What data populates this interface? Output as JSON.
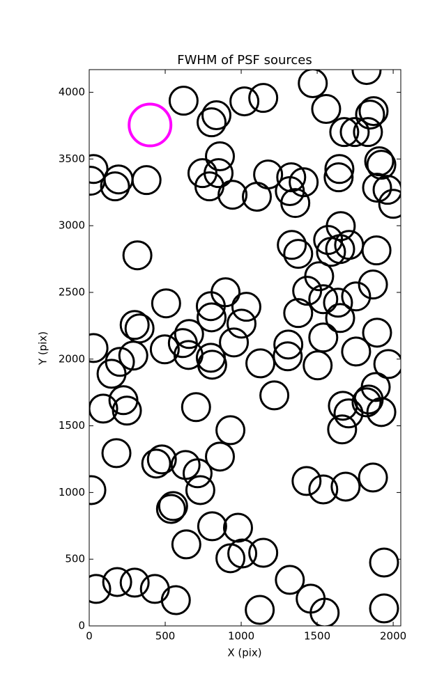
{
  "chart_data": {
    "type": "scatter",
    "title": "FWHM of PSF sources",
    "x_label": "X (pix)",
    "y_label": "Y (pix)",
    "xlim": [
      0,
      2050
    ],
    "ylim": [
      0,
      4170
    ],
    "xticks": [
      0,
      500,
      1000,
      1500,
      2000
    ],
    "yticks": [
      0,
      500,
      1000,
      1500,
      2000,
      2500,
      3000,
      3500,
      4000
    ],
    "series": [
      {
        "color": "#000000",
        "x": [
          28,
          9,
          170,
          193,
          377,
          621,
          805,
          837,
          1021,
          1145,
          860,
          745,
          851,
          791,
          943,
          1103,
          1177,
          1329,
          1320,
          1356,
          1411,
          1471,
          1559,
          1825,
          1871,
          1848,
          1678,
          1747,
          1834,
          1646,
          1641,
          1908,
          1922,
          1894,
          1963,
          2000,
          317,
          1333,
          1375,
          1655,
          1572,
          1591,
          1651,
          1710,
          1890,
          1513,
          1434,
          1540,
          1637,
          1756,
          1867,
          1375,
          1651,
          1540,
          1894,
          1503,
          1756,
          1968,
          506,
          800,
          805,
          897,
          1034,
          1002,
          952,
          299,
          331,
          657,
          616,
          653,
          497,
          290,
          800,
          809,
          1126,
          1310,
          1306,
          28,
          202,
          147,
          92,
          225,
          248,
          703,
          1218,
          929,
          1669,
          1706,
          1825,
          1839,
          1885,
          1922,
          1664,
          179,
          441,
          478,
          634,
          713,
          860,
          731,
          14,
          538,
          552,
          639,
          809,
          979,
          929,
          1007,
          1145,
          1430,
          1540,
          1687,
          1867,
          1320,
          1457,
          1549,
          1122,
          1940,
          1940,
          46,
          184,
          299,
          432,
          570
        ],
        "values": [
          3425,
          3337,
          3295,
          3347,
          3342,
          3937,
          3775,
          3828,
          3932,
          3958,
          3520,
          3394,
          3394,
          3295,
          3232,
          3217,
          3384,
          3363,
          3259,
          3170,
          3326,
          4068,
          3875,
          4167,
          3859,
          3833,
          3702,
          3702,
          3702,
          3425,
          3363,
          3483,
          3457,
          3285,
          3269,
          3164,
          2778,
          2856,
          2789,
          2997,
          2893,
          2804,
          2825,
          2856,
          2815,
          2621,
          2512,
          2449,
          2423,
          2470,
          2559,
          2345,
          2308,
          2162,
          2198,
          1953,
          2057,
          1963,
          2418,
          2397,
          2313,
          2501,
          2392,
          2266,
          2125,
          2256,
          2230,
          2188,
          2120,
          2031,
          2073,
          2026,
          2010,
          1958,
          1968,
          2109,
          2021,
          2083,
          1979,
          1890,
          1629,
          1692,
          1614,
          1640,
          1728,
          1467,
          1650,
          1593,
          1676,
          1697,
          1791,
          1603,
          1473,
          1295,
          1217,
          1248,
          1206,
          1144,
          1269,
          1018,
          1018,
          877,
          898,
          611,
          747,
          736,
          507,
          543,
          548,
          1086,
          1023,
          1044,
          1112,
          345,
          204,
          99,
          120,
          475,
          131,
          277,
          329,
          324,
          277,
          193
        ]
      },
      {
        "color": "#ff00ff",
        "x": [
          400
        ],
        "values": [
          3755
        ]
      }
    ]
  }
}
